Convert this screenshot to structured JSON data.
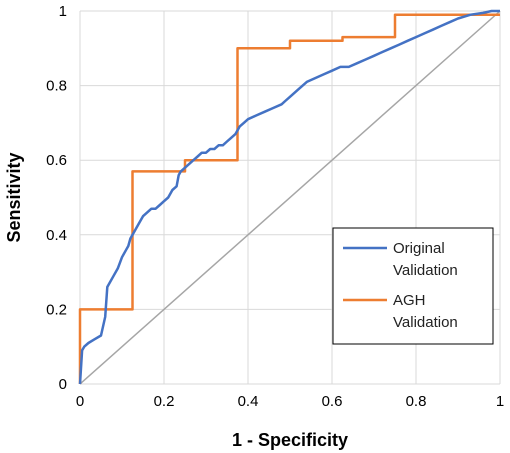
{
  "chart_data": {
    "type": "line",
    "title": "",
    "xlabel": "1 - Specificity",
    "ylabel": "Sensitivity",
    "xlim": [
      0,
      1
    ],
    "ylim": [
      0,
      1
    ],
    "x_ticks": [
      "0",
      "0.2",
      "0.4",
      "0.6",
      "0.8",
      "1"
    ],
    "y_ticks": [
      "0",
      "0.2",
      "0.4",
      "0.6",
      "0.8",
      "1"
    ],
    "grid": "horizontal and vertical",
    "legend_position": "lower-right",
    "reference_line": {
      "x": [
        0,
        1
      ],
      "y": [
        0,
        1
      ],
      "color": "#a6a6a6"
    },
    "series": [
      {
        "name": "Original Validation",
        "color": "#4472c4",
        "x": [
          0.0,
          0.005,
          0.01,
          0.02,
          0.035,
          0.05,
          0.06,
          0.065,
          0.07,
          0.08,
          0.09,
          0.1,
          0.11,
          0.115,
          0.12,
          0.13,
          0.14,
          0.15,
          0.16,
          0.17,
          0.18,
          0.19,
          0.2,
          0.21,
          0.22,
          0.23,
          0.235,
          0.24,
          0.25,
          0.26,
          0.27,
          0.28,
          0.29,
          0.3,
          0.31,
          0.32,
          0.33,
          0.34,
          0.35,
          0.36,
          0.37,
          0.375,
          0.38,
          0.39,
          0.4,
          0.42,
          0.44,
          0.46,
          0.48,
          0.49,
          0.5,
          0.52,
          0.54,
          0.56,
          0.58,
          0.6,
          0.62,
          0.64,
          0.66,
          0.68,
          0.7,
          0.72,
          0.74,
          0.76,
          0.78,
          0.8,
          0.82,
          0.84,
          0.86,
          0.88,
          0.9,
          0.93,
          0.96,
          0.98,
          1.0
        ],
        "y": [
          0.0,
          0.09,
          0.1,
          0.11,
          0.12,
          0.13,
          0.18,
          0.26,
          0.27,
          0.29,
          0.31,
          0.34,
          0.36,
          0.37,
          0.39,
          0.41,
          0.43,
          0.45,
          0.46,
          0.47,
          0.47,
          0.48,
          0.49,
          0.5,
          0.52,
          0.53,
          0.56,
          0.57,
          0.58,
          0.59,
          0.6,
          0.61,
          0.62,
          0.62,
          0.63,
          0.63,
          0.64,
          0.64,
          0.65,
          0.66,
          0.67,
          0.68,
          0.69,
          0.7,
          0.71,
          0.72,
          0.73,
          0.74,
          0.75,
          0.76,
          0.77,
          0.79,
          0.81,
          0.82,
          0.83,
          0.84,
          0.85,
          0.85,
          0.86,
          0.87,
          0.88,
          0.89,
          0.9,
          0.91,
          0.92,
          0.93,
          0.94,
          0.95,
          0.96,
          0.97,
          0.98,
          0.99,
          0.995,
          1.0,
          1.0
        ]
      },
      {
        "name": "AGH Validation",
        "color": "#ed7d31",
        "x": [
          0.0,
          0.0,
          0.125,
          0.125,
          0.25,
          0.25,
          0.375,
          0.375,
          0.5,
          0.5,
          0.625,
          0.625,
          0.75,
          0.75,
          1.0
        ],
        "y": [
          0.0,
          0.2,
          0.2,
          0.57,
          0.57,
          0.6,
          0.6,
          0.9,
          0.9,
          0.92,
          0.92,
          0.93,
          0.93,
          0.99,
          0.99
        ]
      }
    ],
    "legend": {
      "entries": [
        {
          "line1": "Original",
          "line2": "Validation"
        },
        {
          "line1": "AGH",
          "line2": "Validation"
        }
      ]
    }
  }
}
